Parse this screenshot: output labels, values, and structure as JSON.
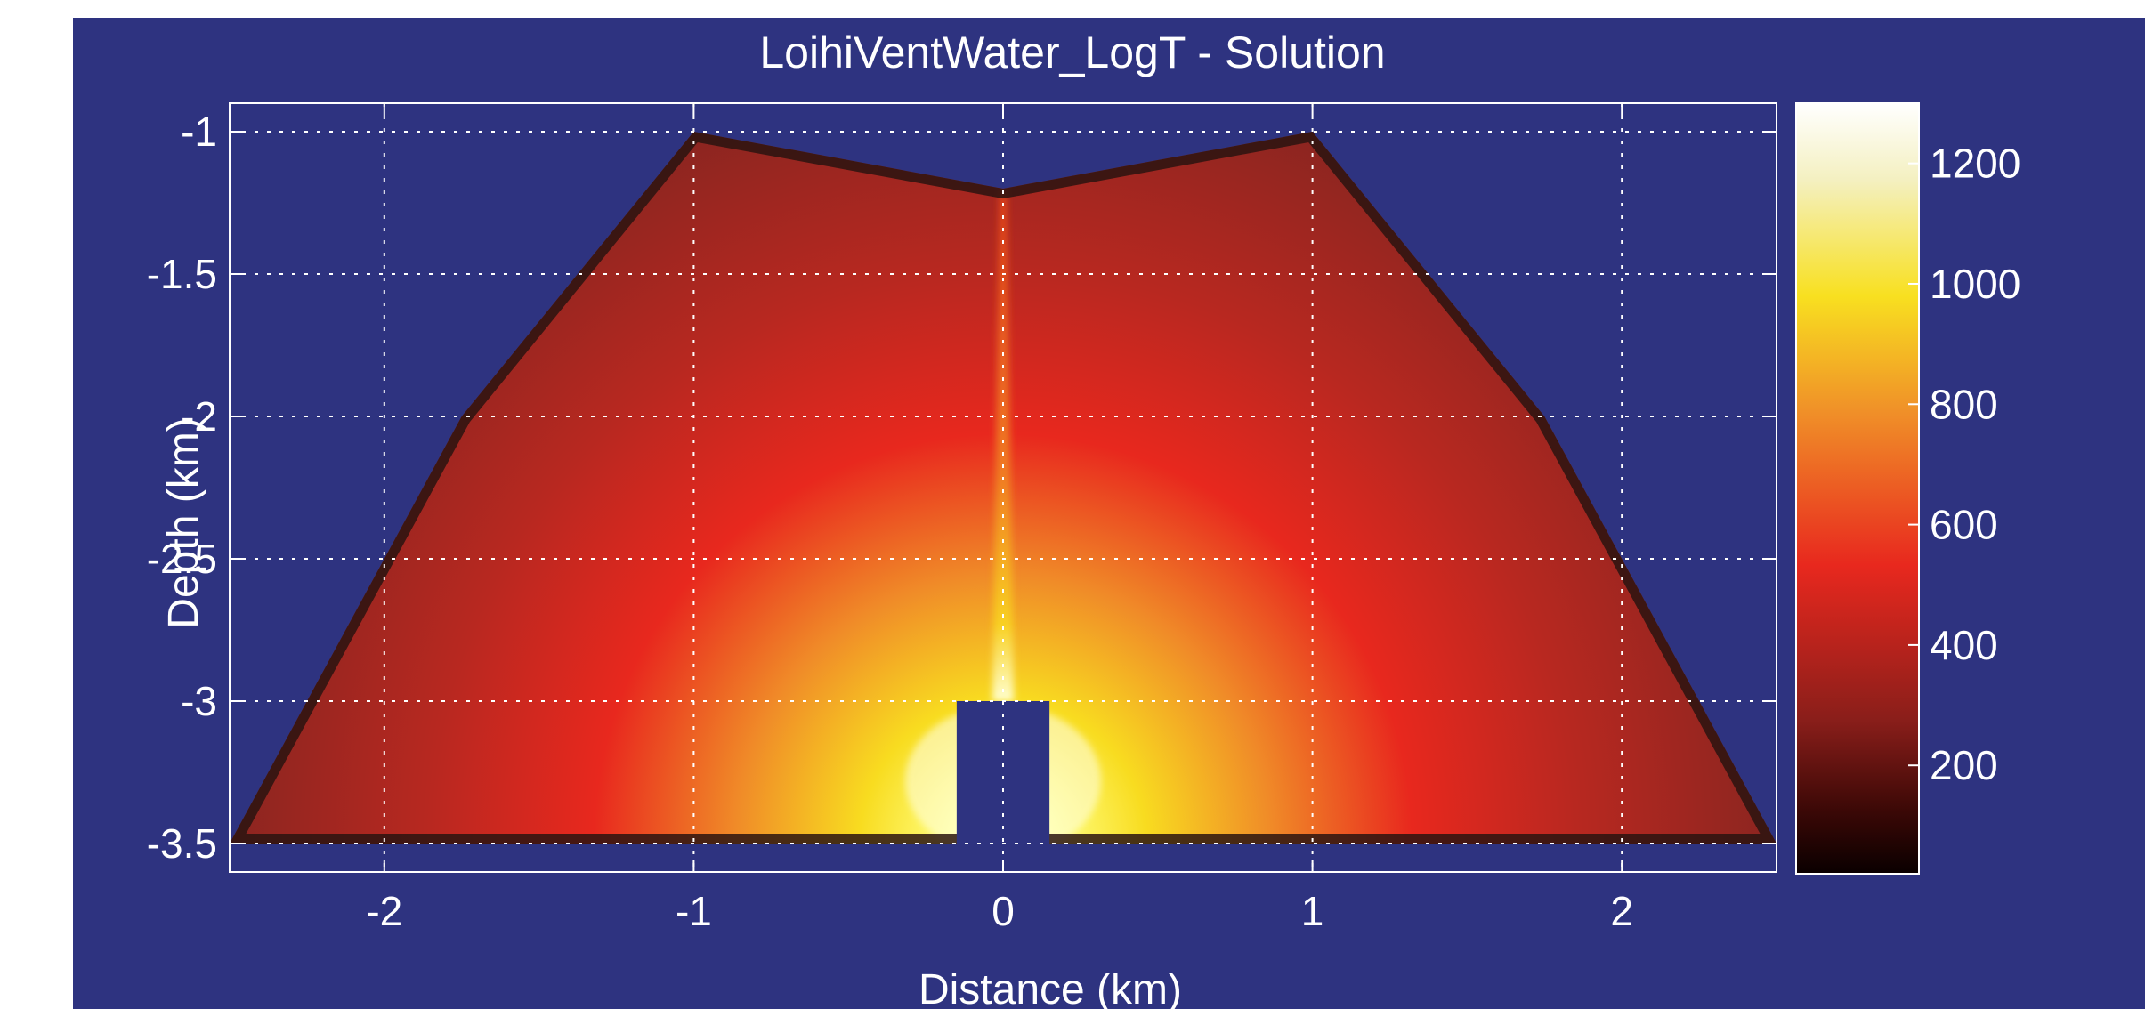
{
  "chart_data": {
    "type": "heatmap",
    "title": "LoihiVentWater_LogT - Solution",
    "xlabel": "Distance (km)",
    "ylabel": "Depth (km)",
    "xlim": [
      -2.5,
      2.5
    ],
    "ylim": [
      -3.6,
      -0.9
    ],
    "x_ticks": [
      -2,
      -1,
      0,
      1,
      2
    ],
    "y_ticks": [
      -1,
      -1.5,
      -2,
      -2.5,
      -3,
      -3.5
    ],
    "x_tick_labels": [
      "-2",
      "-1",
      "0",
      "1",
      "2"
    ],
    "y_tick_labels": [
      "-1",
      "-1.5",
      "-2",
      "-2.5",
      "-3",
      "-3.5"
    ],
    "grid": true,
    "colorbar": {
      "range": [
        20,
        1300
      ],
      "ticks": [
        200,
        400,
        600,
        800,
        1000,
        1200
      ],
      "tick_labels": [
        "200",
        "400",
        "600",
        "800",
        "1000",
        "1200"
      ],
      "colormap": "hot"
    },
    "domain_outline": [
      [
        -2.5,
        -3.5
      ],
      [
        -1.75,
        -2.0
      ],
      [
        -1.0,
        -1.0
      ],
      [
        0.0,
        -1.2
      ],
      [
        1.0,
        -1.0
      ],
      [
        1.75,
        -2.0
      ],
      [
        2.5,
        -3.5
      ]
    ],
    "magma_chamber": {
      "x": [
        -0.15,
        0.15
      ],
      "y": [
        -3.5,
        -3.0
      ]
    },
    "temperature_field": {
      "max_at_chamber_edge": 1300,
      "vent_conduit_x": 0.0,
      "vent_conduit_temperature": 600,
      "background_far_field": 150
    }
  },
  "colors": {
    "panel_background": "#2e3380",
    "axes_and_text": "#ffffff",
    "hot_low": "#0a0000",
    "hot_mid_red": "#e8281e",
    "hot_orange": "#f08c28",
    "hot_yellow": "#f8e020",
    "hot_high": "#ffffff"
  }
}
